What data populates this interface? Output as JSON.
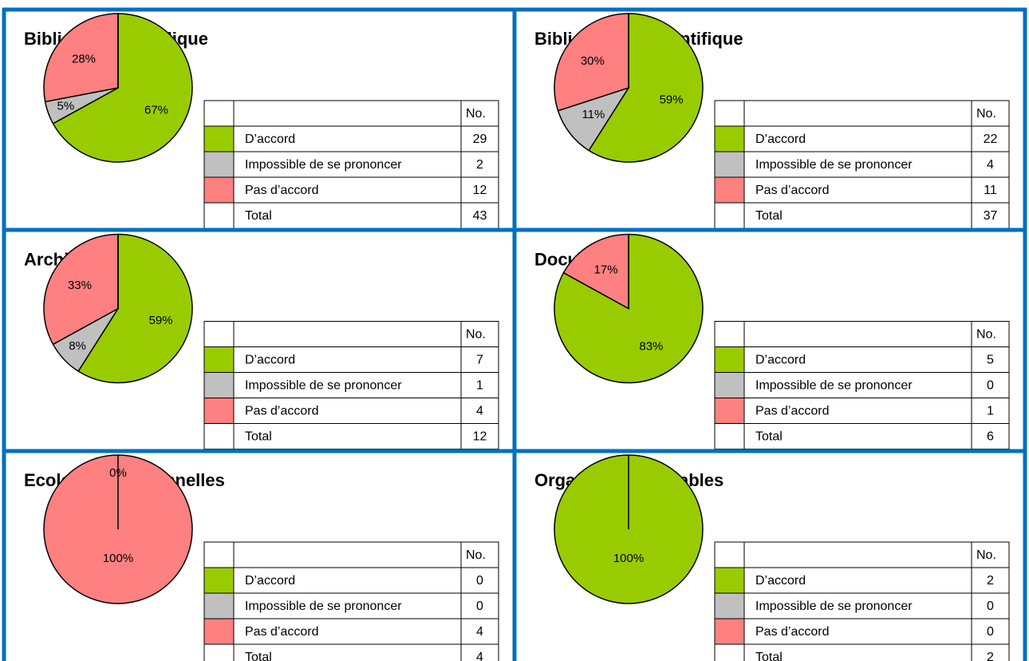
{
  "chart_data": [
    {
      "type": "pie",
      "title": "Bibliothèque publique",
      "categories": [
        "D’accord",
        "Impossible de se prononcer",
        "Pas d’accord"
      ],
      "values": [
        67,
        5,
        28
      ],
      "value_labels": [
        "67%",
        "5%",
        "28%"
      ],
      "colors": [
        "#99cc00",
        "#c0c0c0",
        "#ff8080"
      ],
      "table_header": "No.",
      "counts": [
        29,
        2,
        12
      ],
      "total_label": "Total",
      "total": 43
    },
    {
      "type": "pie",
      "title": "Bibliothèque scientifique",
      "categories": [
        "D’accord",
        "Impossible de se prononcer",
        "Pas d’accord"
      ],
      "values": [
        59,
        11,
        30
      ],
      "value_labels": [
        "59%",
        "11%",
        "30%"
      ],
      "colors": [
        "#99cc00",
        "#c0c0c0",
        "#ff8080"
      ],
      "table_header": "No.",
      "counts": [
        22,
        4,
        11
      ],
      "total_label": "Total",
      "total": 37
    },
    {
      "type": "pie",
      "title": "Archives",
      "categories": [
        "D’accord",
        "Impossible de se prononcer",
        "Pas d’accord"
      ],
      "values": [
        59,
        8,
        33
      ],
      "value_labels": [
        "59%",
        "8%",
        "33%"
      ],
      "colors": [
        "#99cc00",
        "#c0c0c0",
        "#ff8080"
      ],
      "table_header": "No.",
      "counts": [
        7,
        1,
        4
      ],
      "total_label": "Total",
      "total": 12
    },
    {
      "type": "pie",
      "title": "Documentation",
      "categories": [
        "D’accord",
        "Impossible de se prononcer",
        "Pas d’accord"
      ],
      "values": [
        83,
        0,
        17
      ],
      "value_labels": [
        "83%",
        null,
        "17%"
      ],
      "colors": [
        "#99cc00",
        "#c0c0c0",
        "#ff8080"
      ],
      "table_header": "No.",
      "counts": [
        5,
        0,
        1
      ],
      "total_label": "Total",
      "total": 6
    },
    {
      "type": "pie",
      "title": "Ecoles professionnelles",
      "categories": [
        "D’accord",
        "Impossible de se prononcer",
        "Pas d’accord"
      ],
      "values": [
        0,
        0,
        100
      ],
      "value_labels": [
        "0%",
        null,
        "100%"
      ],
      "colors": [
        "#99cc00",
        "#c0c0c0",
        "#ff8080"
      ],
      "table_header": "No.",
      "counts": [
        0,
        0,
        4
      ],
      "total_label": "Total",
      "total": 4
    },
    {
      "type": "pie",
      "title": "Organes responsables",
      "categories": [
        "D’accord",
        "Impossible de se prononcer",
        "Pas d’accord"
      ],
      "values": [
        100,
        0,
        0
      ],
      "value_labels": [
        "100%",
        null,
        null
      ],
      "colors": [
        "#99cc00",
        "#c0c0c0",
        "#ff8080"
      ],
      "table_header": "No.",
      "counts": [
        2,
        0,
        0
      ],
      "total_label": "Total",
      "total": 2
    }
  ]
}
